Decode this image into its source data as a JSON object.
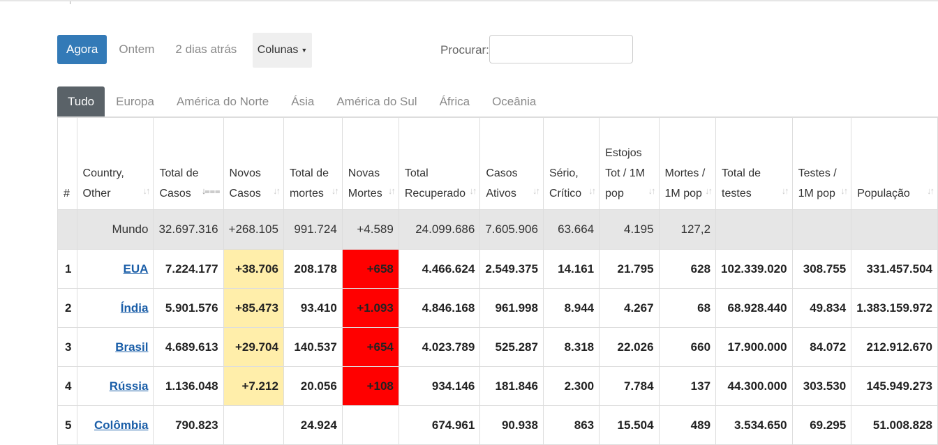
{
  "pills": [
    "Agora",
    "Ontem",
    "2 dias atrás"
  ],
  "columns_label": "Colunas",
  "search": {
    "label": "Procurar:",
    "value": "",
    "placeholder": ""
  },
  "tabs": [
    "Tudo",
    "Europa",
    "América do Norte",
    "Ásia",
    "América do Sul",
    "África",
    "Oceânia"
  ],
  "headers": [
    "#",
    "Country, Other",
    "Total de Casos",
    "Novos Casos",
    "Total de mortes",
    "Novas Mortes",
    "Total Recuperado",
    "Casos Ativos",
    "Sério, Crítico",
    "Estojos Tot / 1M pop",
    "Mortes / 1M pop",
    "Total de testes",
    "Testes / 1M pop",
    "População"
  ],
  "world": {
    "country": "Mundo",
    "total_cases": "32.697.316",
    "new_cases": "+268.105",
    "total_deaths": "991.724",
    "new_deaths": "+4.589",
    "recovered": "24.099.686",
    "active": "7.605.906",
    "critical": "63.664",
    "cases_per_m": "4.195",
    "deaths_per_m": "127,2",
    "tests": "",
    "tests_per_m": "",
    "population": ""
  },
  "rows": [
    {
      "num": "1",
      "country": "EUA",
      "total_cases": "7.224.177",
      "new_cases": "+38.706",
      "total_deaths": "208.178",
      "new_deaths": "+658",
      "recovered": "4.466.624",
      "active": "2.549.375",
      "critical": "14.161",
      "cases_per_m": "21.795",
      "deaths_per_m": "628",
      "tests": "102.339.020",
      "tests_per_m": "308.755",
      "population": "331.457.504"
    },
    {
      "num": "2",
      "country": "Índia",
      "total_cases": "5.901.576",
      "new_cases": "+85.473",
      "total_deaths": "93.410",
      "new_deaths": "+1.093",
      "recovered": "4.846.168",
      "active": "961.998",
      "critical": "8.944",
      "cases_per_m": "4.267",
      "deaths_per_m": "68",
      "tests": "68.928.440",
      "tests_per_m": "49.834",
      "population": "1.383.159.972"
    },
    {
      "num": "3",
      "country": "Brasil",
      "total_cases": "4.689.613",
      "new_cases": "+29.704",
      "total_deaths": "140.537",
      "new_deaths": "+654",
      "recovered": "4.023.789",
      "active": "525.287",
      "critical": "8.318",
      "cases_per_m": "22.026",
      "deaths_per_m": "660",
      "tests": "17.900.000",
      "tests_per_m": "84.072",
      "population": "212.912.670"
    },
    {
      "num": "4",
      "country": "Rússia",
      "total_cases": "1.136.048",
      "new_cases": "+7.212",
      "total_deaths": "20.056",
      "new_deaths": "+108",
      "recovered": "934.146",
      "active": "181.846",
      "critical": "2.300",
      "cases_per_m": "7.784",
      "deaths_per_m": "137",
      "tests": "44.300.000",
      "tests_per_m": "303.530",
      "population": "145.949.273"
    },
    {
      "num": "5",
      "country": "Colômbia",
      "total_cases": "790.823",
      "new_cases": "",
      "total_deaths": "24.924",
      "new_deaths": "",
      "recovered": "674.961",
      "active": "90.938",
      "critical": "863",
      "cases_per_m": "15.504",
      "deaths_per_m": "489",
      "tests": "3.534.650",
      "tests_per_m": "69.295",
      "population": "51.008.828"
    }
  ],
  "colors": {
    "accent": "#337ab7",
    "new_cases_bg": "#ffeeaa",
    "new_deaths_bg": "#ff0000",
    "link": "#1a5ea8"
  }
}
